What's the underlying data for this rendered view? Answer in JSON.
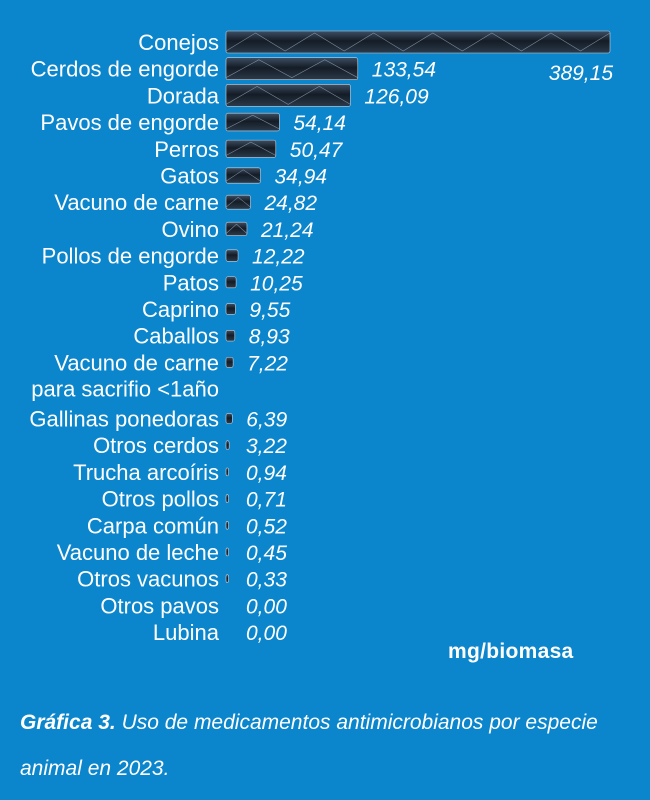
{
  "chart_data": {
    "type": "bar",
    "orientation": "horizontal",
    "categories": [
      "Conejos",
      "Cerdos de engorde",
      "Dorada",
      "Pavos de engorde",
      "Perros",
      "Gatos",
      "Vacuno de carne",
      "Ovino",
      "Pollos de engorde",
      "Patos",
      "Caprino",
      "Caballos",
      [
        "Vacuno de carne",
        "para sacrifio <1año"
      ],
      "Gallinas ponedoras",
      "Otros cerdos",
      "Trucha arcoíris",
      "Otros pollos",
      "Carpa común",
      "Vacuno de leche",
      "Otros vacunos",
      "Otros pavos",
      "Lubina"
    ],
    "values": [
      389.15,
      133.54,
      126.09,
      54.14,
      50.47,
      34.94,
      24.82,
      21.24,
      12.22,
      10.25,
      9.55,
      8.93,
      7.22,
      6.39,
      3.22,
      0.94,
      0.71,
      0.52,
      0.45,
      0.33,
      0.0,
      0.0
    ],
    "value_labels": [
      "389,15",
      "133,54",
      "126,09",
      "54,14",
      "50,47",
      "34,94",
      "24,82",
      "21,24",
      "12,22",
      "10,25",
      "9,55",
      "8,93",
      "7,22",
      "6,39",
      "3,22",
      "0,94",
      "0,71",
      "0,52",
      "0,45",
      "0,33",
      "0,00",
      "0,00"
    ],
    "unit": "mg/biomasa",
    "colors": {
      "background": "#0b86cc",
      "bar": "#1d2a38",
      "text": "#ffffff"
    }
  },
  "caption": {
    "number": "Gráfica 3.",
    "text": " Uso de medicamentos antimicrobianos por especie animal en 2023."
  }
}
